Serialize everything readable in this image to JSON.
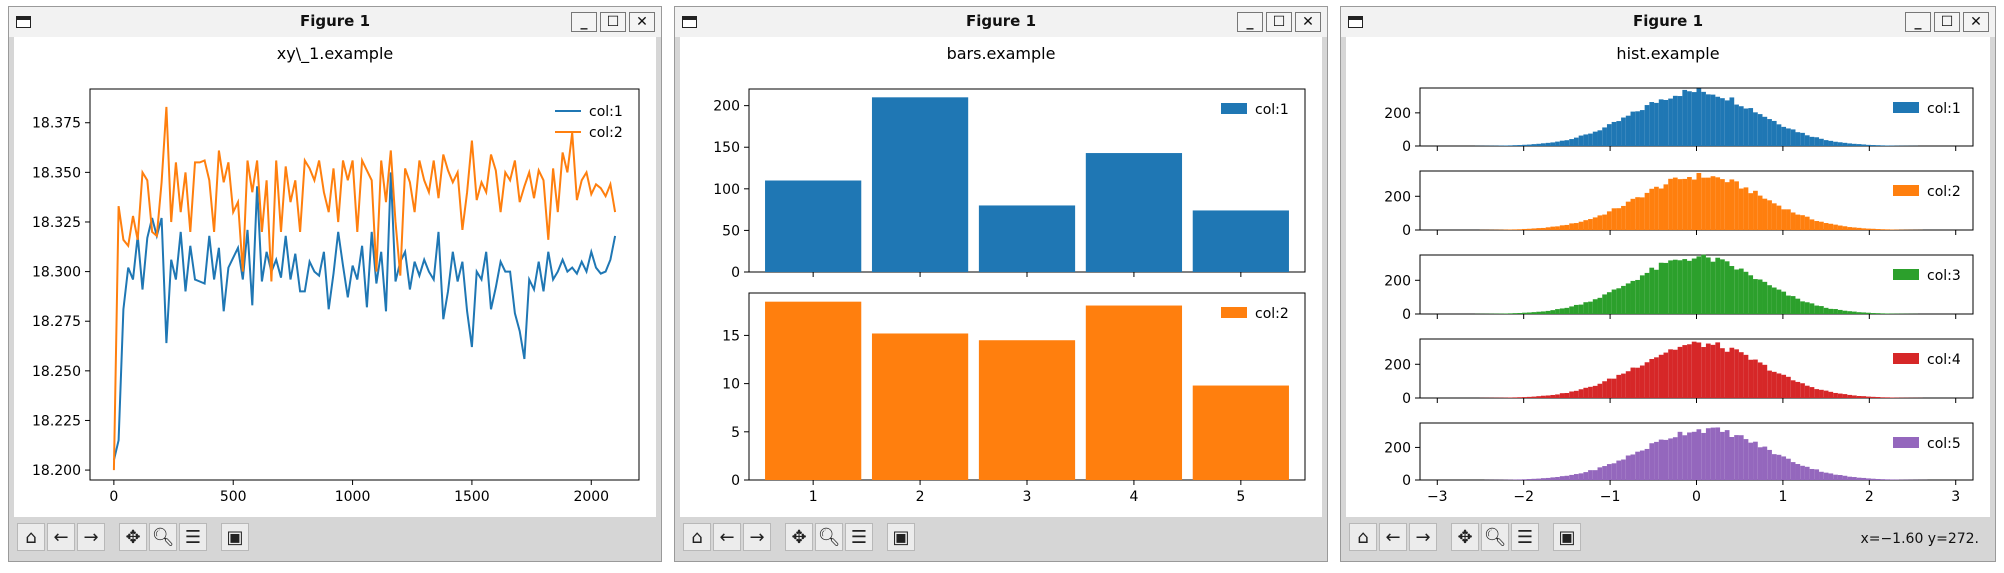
{
  "windows": [
    {
      "title": "Figure 1",
      "chart_title": "xy\\_1.example",
      "coords": ""
    },
    {
      "title": "Figure 1",
      "chart_title": "bars.example",
      "coords": ""
    },
    {
      "title": "Figure 1",
      "chart_title": "hist.example",
      "coords": "x=−1.60 y=272."
    }
  ],
  "toolbar": {
    "icons": [
      "home-icon",
      "back-arrow-icon",
      "forward-arrow-icon",
      "pan-icon",
      "zoom-icon",
      "subplots-config-icon",
      "save-icon"
    ]
  },
  "colors": {
    "c1": "#1f77b4",
    "c2": "#ff7f0e",
    "c3": "#2ca02c",
    "c4": "#d62728",
    "c5": "#9467bd"
  },
  "chart_data": [
    {
      "type": "line",
      "title": "xy\\_1.example",
      "xlim": [
        -100,
        2200
      ],
      "ylim": [
        18.195,
        18.392
      ],
      "xticks": [
        "0",
        "500",
        "1000",
        "1500",
        "2000"
      ],
      "yticks": [
        "18.200",
        "18.225",
        "18.250",
        "18.275",
        "18.300",
        "18.325",
        "18.350",
        "18.375"
      ],
      "legend": "top-right",
      "x": [
        0,
        20,
        40,
        60,
        80,
        100,
        120,
        140,
        160,
        180,
        200,
        220,
        240,
        260,
        280,
        300,
        320,
        340,
        360,
        380,
        400,
        420,
        440,
        460,
        480,
        500,
        520,
        540,
        560,
        580,
        600,
        620,
        640,
        660,
        680,
        700,
        720,
        740,
        760,
        780,
        800,
        820,
        840,
        860,
        880,
        900,
        920,
        940,
        960,
        980,
        1000,
        1020,
        1040,
        1060,
        1080,
        1100,
        1120,
        1140,
        1160,
        1180,
        1200,
        1220,
        1240,
        1260,
        1280,
        1300,
        1320,
        1340,
        1360,
        1380,
        1400,
        1420,
        1440,
        1460,
        1480,
        1500,
        1520,
        1540,
        1560,
        1580,
        1600,
        1620,
        1640,
        1660,
        1680,
        1700,
        1720,
        1740,
        1760,
        1780,
        1800,
        1820,
        1840,
        1860,
        1880,
        1900,
        1920,
        1940,
        1960,
        1980,
        2000,
        2020,
        2040,
        2060,
        2080,
        2100
      ],
      "series": [
        {
          "name": "col:1",
          "values": [
            18.205,
            18.215,
            18.281,
            18.302,
            18.296,
            18.318,
            18.291,
            18.317,
            18.327,
            18.318,
            18.327,
            18.264,
            18.306,
            18.296,
            18.32,
            18.29,
            18.313,
            18.296,
            18.295,
            18.294,
            18.318,
            18.296,
            18.312,
            18.28,
            18.302,
            18.307,
            18.312,
            18.296,
            18.321,
            18.283,
            18.343,
            18.295,
            18.31,
            18.3,
            18.306,
            18.297,
            18.318,
            18.296,
            18.309,
            18.29,
            18.29,
            18.305,
            18.3,
            18.298,
            18.31,
            18.281,
            18.299,
            18.32,
            18.303,
            18.287,
            18.303,
            18.296,
            18.313,
            18.282,
            18.32,
            18.294,
            18.31,
            18.28,
            18.35,
            18.295,
            18.305,
            18.31,
            18.291,
            18.305,
            18.298,
            18.306,
            18.3,
            18.296,
            18.32,
            18.276,
            18.29,
            18.31,
            18.295,
            18.305,
            18.28,
            18.262,
            18.3,
            18.296,
            18.31,
            18.281,
            18.292,
            18.305,
            18.3,
            18.3,
            18.279,
            18.27,
            18.256,
            18.296,
            18.291,
            18.305,
            18.29,
            18.31,
            18.296,
            18.3,
            18.306,
            18.3,
            18.302,
            18.299,
            18.305,
            18.3,
            18.31,
            18.302,
            18.299,
            18.3,
            18.306,
            18.318
          ]
        },
        {
          "name": "col:2",
          "values": [
            18.2,
            18.333,
            18.316,
            18.313,
            18.328,
            18.316,
            18.35,
            18.346,
            18.32,
            18.318,
            18.345,
            18.383,
            18.325,
            18.355,
            18.33,
            18.35,
            18.32,
            18.355,
            18.355,
            18.356,
            18.346,
            18.32,
            18.361,
            18.345,
            18.355,
            18.33,
            18.335,
            18.3,
            18.356,
            18.34,
            18.356,
            18.32,
            18.346,
            18.295,
            18.356,
            18.32,
            18.353,
            18.335,
            18.346,
            18.32,
            18.356,
            18.352,
            18.346,
            18.356,
            18.34,
            18.33,
            18.352,
            18.325,
            18.356,
            18.346,
            18.356,
            18.32,
            18.356,
            18.351,
            18.346,
            18.3,
            18.356,
            18.335,
            18.361,
            18.325,
            18.298,
            18.352,
            18.345,
            18.33,
            18.356,
            18.346,
            18.34,
            18.356,
            18.337,
            18.359,
            18.351,
            18.345,
            18.35,
            18.321,
            18.34,
            18.366,
            18.336,
            18.345,
            18.34,
            18.359,
            18.351,
            18.33,
            18.35,
            18.346,
            18.356,
            18.335,
            18.343,
            18.35,
            18.337,
            18.351,
            18.346,
            18.316,
            18.352,
            18.33,
            18.36,
            18.35,
            18.37,
            18.336,
            18.346,
            18.35,
            18.339,
            18.344,
            18.342,
            18.338,
            18.344,
            18.33
          ]
        }
      ]
    },
    {
      "type": "bar",
      "title": "bars.example",
      "categories": [
        "1",
        "2",
        "3",
        "4",
        "5"
      ],
      "series": [
        {
          "name": "col:1",
          "values": [
            110,
            210,
            80,
            143,
            74
          ],
          "ylim": [
            0,
            220
          ],
          "yticks": [
            0,
            50,
            100,
            150,
            200
          ]
        },
        {
          "name": "col:2",
          "values": [
            18.5,
            15.2,
            14.5,
            18.1,
            9.8
          ],
          "ylim": [
            0,
            19.4
          ],
          "yticks": [
            0,
            5,
            10,
            15
          ]
        }
      ],
      "legend": "top-right"
    },
    {
      "type": "bar",
      "title": "hist.example",
      "xlim": [
        -3.2,
        3.2
      ],
      "xticks": [
        "−3",
        "−2",
        "−1",
        "0",
        "1",
        "2",
        "3"
      ],
      "yticks": [
        0,
        200
      ],
      "ylim": [
        0,
        350
      ],
      "legend": "top-right",
      "series": [
        {
          "name": "col:1",
          "bin_range": [
            -3.0,
            3.0
          ],
          "peak": 330,
          "mean": 0.0,
          "sd": 0.72
        },
        {
          "name": "col:2",
          "bin_range": [
            -3.0,
            3.0
          ],
          "peak": 320,
          "mean": 0.05,
          "sd": 0.72
        },
        {
          "name": "col:3",
          "bin_range": [
            -3.0,
            3.0
          ],
          "peak": 335,
          "mean": 0.0,
          "sd": 0.72
        },
        {
          "name": "col:4",
          "bin_range": [
            -3.0,
            3.0
          ],
          "peak": 320,
          "mean": 0.05,
          "sd": 0.72
        },
        {
          "name": "col:5",
          "bin_range": [
            -3.0,
            3.0
          ],
          "peak": 310,
          "mean": 0.1,
          "sd": 0.72
        }
      ]
    }
  ]
}
